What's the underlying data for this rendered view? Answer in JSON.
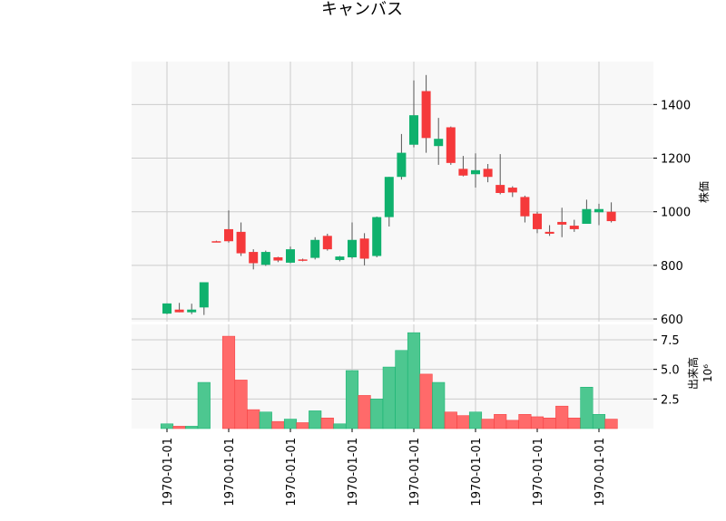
{
  "chart_data": {
    "type": "candlestick",
    "title": "キャンバス",
    "price_axis": {
      "label": "株価",
      "ylim": [
        590,
        1560
      ],
      "ticks": [
        600,
        800,
        1000,
        1200,
        1400
      ],
      "position": "right"
    },
    "volume_axis": {
      "label": "出来高",
      "scale_label": "10⁶",
      "ylim": [
        0,
        8.8
      ],
      "ticks": [
        2.5,
        5.0,
        7.5
      ],
      "ticks_text": [
        "2.5",
        "5.0",
        "7.5"
      ],
      "position": "right"
    },
    "x_tick_labels": [
      "1970-01-01",
      "1970-01-01",
      "1970-01-01",
      "1970-01-01",
      "1970-01-01",
      "1970-01-01",
      "1970-01-01",
      "1970-01-01"
    ],
    "grid": true,
    "colors": {
      "up": "#0fb16d",
      "down": "#f5393b",
      "vol_up": "#4dc790",
      "vol_down": "#ff6a6a",
      "wick": "#555555",
      "plot_bg": "#f8f8f8",
      "grid": "#cccccc"
    },
    "candles": [
      {
        "o": 620,
        "h": 658,
        "l": 618,
        "c": 658,
        "v": 0.4
      },
      {
        "o": 635,
        "h": 660,
        "l": 625,
        "c": 625,
        "v": 0.2
      },
      {
        "o": 625,
        "h": 657,
        "l": 618,
        "c": 635,
        "v": 0.2
      },
      {
        "o": 643,
        "h": 737,
        "l": 615,
        "c": 737,
        "v": 3.9
      },
      {
        "o": 890,
        "h": 892,
        "l": 888,
        "c": 888,
        "v": 0.0
      },
      {
        "o": 935,
        "h": 1005,
        "l": 885,
        "c": 890,
        "v": 7.8
      },
      {
        "o": 925,
        "h": 960,
        "l": 835,
        "c": 845,
        "v": 4.1
      },
      {
        "o": 850,
        "h": 860,
        "l": 785,
        "c": 808,
        "v": 1.6
      },
      {
        "o": 802,
        "h": 855,
        "l": 798,
        "c": 850,
        "v": 1.4
      },
      {
        "o": 830,
        "h": 832,
        "l": 812,
        "c": 818,
        "v": 0.6
      },
      {
        "o": 810,
        "h": 870,
        "l": 808,
        "c": 860,
        "v": 0.8
      },
      {
        "o": 822,
        "h": 825,
        "l": 815,
        "c": 818,
        "v": 0.5
      },
      {
        "o": 828,
        "h": 905,
        "l": 822,
        "c": 895,
        "v": 1.5
      },
      {
        "o": 910,
        "h": 918,
        "l": 855,
        "c": 860,
        "v": 0.9
      },
      {
        "o": 820,
        "h": 835,
        "l": 815,
        "c": 833,
        "v": 0.4
      },
      {
        "o": 830,
        "h": 960,
        "l": 825,
        "c": 895,
        "v": 4.9
      },
      {
        "o": 900,
        "h": 920,
        "l": 800,
        "c": 825,
        "v": 2.8
      },
      {
        "o": 835,
        "h": 982,
        "l": 830,
        "c": 980,
        "v": 2.5
      },
      {
        "o": 980,
        "h": 1130,
        "l": 945,
        "c": 1130,
        "v": 5.2
      },
      {
        "o": 1130,
        "h": 1290,
        "l": 1120,
        "c": 1220,
        "v": 6.6
      },
      {
        "o": 1250,
        "h": 1490,
        "l": 1240,
        "c": 1360,
        "v": 8.1
      },
      {
        "o": 1450,
        "h": 1510,
        "l": 1220,
        "c": 1275,
        "v": 4.6
      },
      {
        "o": 1245,
        "h": 1350,
        "l": 1175,
        "c": 1272,
        "v": 3.9
      },
      {
        "o": 1315,
        "h": 1318,
        "l": 1175,
        "c": 1182,
        "v": 1.4
      },
      {
        "o": 1160,
        "h": 1208,
        "l": 1132,
        "c": 1135,
        "v": 1.1
      },
      {
        "o": 1140,
        "h": 1218,
        "l": 1090,
        "c": 1155,
        "v": 1.4
      },
      {
        "o": 1160,
        "h": 1178,
        "l": 1110,
        "c": 1130,
        "v": 0.8
      },
      {
        "o": 1100,
        "h": 1215,
        "l": 1065,
        "c": 1070,
        "v": 1.2
      },
      {
        "o": 1090,
        "h": 1095,
        "l": 1055,
        "c": 1072,
        "v": 0.7
      },
      {
        "o": 1055,
        "h": 1060,
        "l": 960,
        "c": 983,
        "v": 1.2
      },
      {
        "o": 993,
        "h": 1000,
        "l": 920,
        "c": 935,
        "v": 1.0
      },
      {
        "o": 925,
        "h": 950,
        "l": 910,
        "c": 918,
        "v": 0.9
      },
      {
        "o": 962,
        "h": 1015,
        "l": 905,
        "c": 952,
        "v": 1.9
      },
      {
        "o": 948,
        "h": 970,
        "l": 925,
        "c": 935,
        "v": 0.9
      },
      {
        "o": 955,
        "h": 1045,
        "l": 955,
        "c": 1010,
        "v": 3.5
      },
      {
        "o": 998,
        "h": 1030,
        "l": 950,
        "c": 1010,
        "v": 1.2
      },
      {
        "o": 1000,
        "h": 1035,
        "l": 960,
        "c": 965,
        "v": 0.8
      }
    ]
  }
}
